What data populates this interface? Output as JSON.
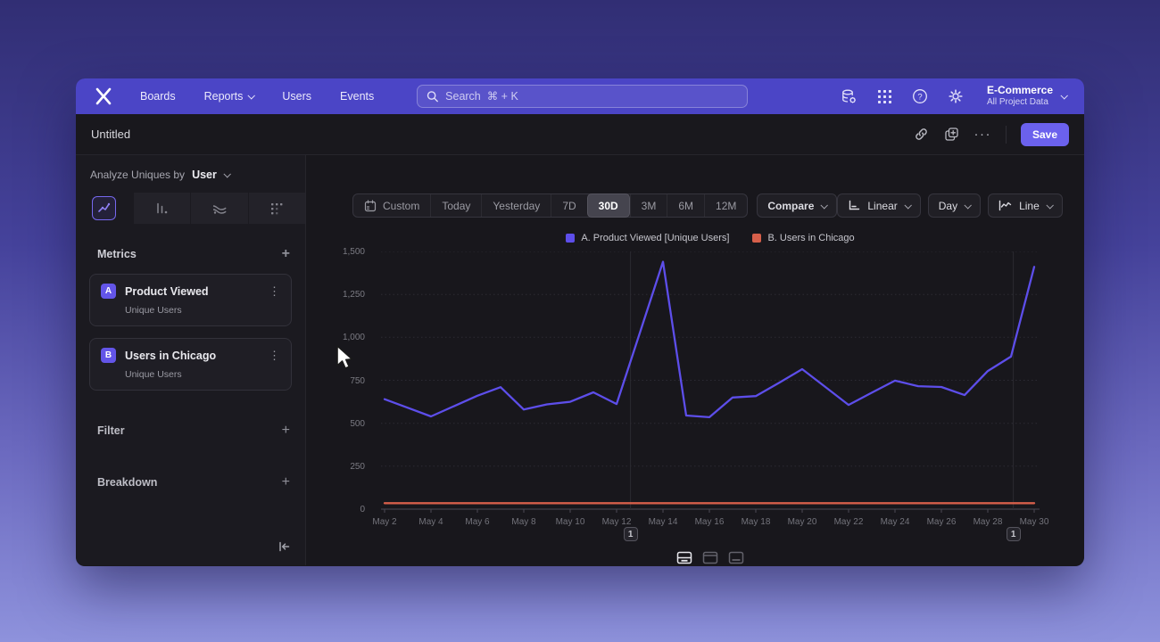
{
  "colors": {
    "navbar": "#4b45c6",
    "accent": "#6b61ed",
    "series_a": "#5d4eea",
    "series_b": "#d65f4a"
  },
  "nav": {
    "logo": "mixpanel",
    "items": [
      "Boards",
      "Reports",
      "Users",
      "Events"
    ],
    "search": {
      "placeholder": "Search  ⌘ + K"
    },
    "icons": [
      "data-settings-icon",
      "apps-grid-icon",
      "help-icon",
      "gear-icon"
    ],
    "project": {
      "name": "E-Commerce",
      "subtitle": "All Project Data"
    }
  },
  "toolbar": {
    "title": "Untitled",
    "icons": [
      "link-icon",
      "duplicate-icon",
      "more-icon"
    ],
    "more_glyph": "···",
    "save_label": "Save"
  },
  "sidebar": {
    "analyze_prefix": "Analyze Uniques by",
    "analyze_value": "User",
    "chart_type_tabs": {
      "options": [
        "line",
        "bar",
        "flow",
        "metric"
      ],
      "active": "line"
    },
    "metrics": {
      "title": "Metrics",
      "add_glyph": "+",
      "items": [
        {
          "badge": "A",
          "name": "Product Viewed",
          "subtitle": "Unique Users",
          "menu_glyph": "⋮"
        },
        {
          "badge": "B",
          "name": "Users in Chicago",
          "subtitle": "Unique Users",
          "menu_glyph": "⋮"
        }
      ]
    },
    "filter_label": "Filter",
    "breakdown_label": "Breakdown",
    "add_glyph": "+"
  },
  "controls": {
    "date_ranges": [
      "Custom",
      "Today",
      "Yesterday",
      "7D",
      "30D",
      "3M",
      "6M",
      "12M"
    ],
    "active_range": "30D",
    "compare_label": "Compare",
    "scale_label": "Linear",
    "granularity_label": "Day",
    "chart_type_label": "Line"
  },
  "chart_data": {
    "type": "line",
    "x": [
      "May 2",
      "May 3",
      "May 4",
      "May 5",
      "May 6",
      "May 7",
      "May 8",
      "May 9",
      "May 10",
      "May 11",
      "May 12",
      "May 13",
      "May 14",
      "May 15",
      "May 16",
      "May 17",
      "May 18",
      "May 19",
      "May 20",
      "May 21",
      "May 22",
      "May 23",
      "May 24",
      "May 25",
      "May 26",
      "May 27",
      "May 28",
      "May 29",
      "May 30"
    ],
    "x_tick_labels": [
      "May 2",
      "May 4",
      "May 6",
      "May 8",
      "May 10",
      "May 12",
      "May 14",
      "May 16",
      "May 18",
      "May 20",
      "May 22",
      "May 24",
      "May 26",
      "May 28",
      "May 30"
    ],
    "series": [
      {
        "name": "A. Product Viewed [Unique Users]",
        "color": "#5d4eea",
        "values": [
          640,
          590,
          540,
          600,
          660,
          710,
          580,
          610,
          625,
          680,
          612,
          1025,
          1440,
          545,
          535,
          650,
          658,
          735,
          815,
          711,
          607,
          678,
          748,
          716,
          711,
          664,
          804,
          888,
          1410
        ]
      },
      {
        "name": "B. Users in Chicago",
        "color": "#d65f4a",
        "values": [
          35,
          35,
          35,
          35,
          35,
          35,
          35,
          35,
          35,
          35,
          35,
          35,
          35,
          35,
          35,
          35,
          35,
          35,
          35,
          35,
          35,
          35,
          35,
          35,
          35,
          35,
          35,
          35,
          35
        ]
      }
    ],
    "ylim": [
      0,
      1500
    ],
    "ytick_values": [
      0,
      250,
      500,
      750,
      1000,
      1250,
      1500
    ],
    "ytick_labels": [
      "0",
      "250",
      "500",
      "750",
      "1,000",
      "1,250",
      "1,500"
    ],
    "grid": true,
    "legend_position": "top-center",
    "annotations": [
      {
        "label": "1",
        "position_day_index": 10.6
      },
      {
        "label": "1",
        "position_day_index": 27.1
      }
    ]
  },
  "view_toggles": {
    "options": [
      "split-view",
      "chart-view",
      "table-view"
    ],
    "active": "split-view"
  }
}
